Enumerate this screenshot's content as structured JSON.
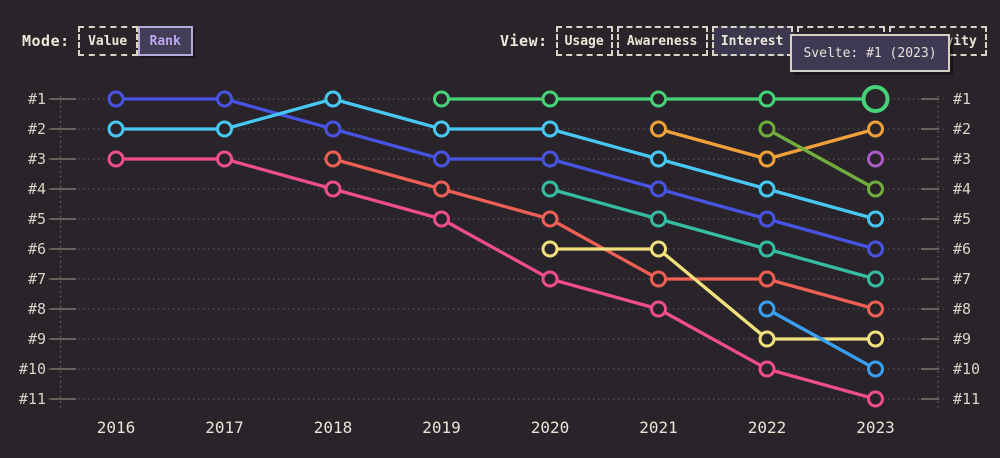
{
  "colors": {
    "background": "#282429",
    "text": "#e9e4d6",
    "grid": "#54505a",
    "tick": "#8a847a",
    "selected_mode_bg": "#433e58",
    "selected_mode_text": "#bda6ef",
    "selected_view_bg": "#3b374d",
    "tooltip_bg": "#3e3a54",
    "tooltip_border": "#d6d1c3"
  },
  "controls": {
    "mode": {
      "label": "Mode:",
      "options": [
        {
          "label": "Value",
          "selected": false
        },
        {
          "label": "Rank",
          "selected": true
        }
      ]
    },
    "view": {
      "label": "View:",
      "options": [
        {
          "label": "Usage",
          "selected": false
        },
        {
          "label": "Awareness",
          "selected": false
        },
        {
          "label": "Interest",
          "selected": true
        },
        {
          "label": "",
          "selected": false,
          "occluded_by_tooltip": true
        },
        {
          "label": "Positivity",
          "selected": false,
          "partially_occluded_by_tooltip": true
        }
      ]
    }
  },
  "tooltip": {
    "text": "Svelte: #1 (2023)"
  },
  "chart_data": {
    "type": "line",
    "subtype": "bump-rank-chart",
    "title": "",
    "x": [
      2016,
      2017,
      2018,
      2019,
      2020,
      2021,
      2022,
      2023
    ],
    "rank_labels": [
      "#1",
      "#2",
      "#3",
      "#4",
      "#5",
      "#6",
      "#7",
      "#8",
      "#9",
      "#10",
      "#11"
    ],
    "ylim": [
      1,
      11
    ],
    "grid": "dotted-horizontal, rank axis mirrored left and right",
    "legend": "none (series identified by color; hovered series tooltip = Svelte)",
    "series": [
      {
        "name": "blue",
        "color": "#4853e3",
        "ranks": [
          1,
          1,
          2,
          3,
          3,
          4,
          5,
          6
        ]
      },
      {
        "name": "cyan",
        "color": "#47c8f2",
        "ranks": [
          2,
          2,
          1,
          2,
          2,
          3,
          4,
          5
        ]
      },
      {
        "name": "pink",
        "color": "#ef4e88",
        "ranks": [
          3,
          3,
          4,
          5,
          7,
          8,
          10,
          11
        ]
      },
      {
        "name": "salmon",
        "color": "#ee5f55",
        "ranks": [
          null,
          null,
          3,
          4,
          5,
          7,
          7,
          8
        ]
      },
      {
        "name": "teal",
        "color": "#36bda1",
        "ranks": [
          null,
          null,
          null,
          null,
          4,
          5,
          6,
          7
        ]
      },
      {
        "name": "yellow",
        "color": "#f1e17e",
        "ranks": [
          null,
          null,
          null,
          null,
          6,
          6,
          9,
          9
        ]
      },
      {
        "name": "orange",
        "color": "#efa03a",
        "ranks": [
          null,
          null,
          null,
          null,
          null,
          2,
          3,
          2
        ]
      },
      {
        "name": "apple-green",
        "color": "#70ad3d",
        "ranks": [
          null,
          null,
          null,
          null,
          null,
          null,
          2,
          4
        ]
      },
      {
        "name": "sky-blue",
        "color": "#3a9ff0",
        "ranks": [
          null,
          null,
          null,
          null,
          null,
          null,
          8,
          10
        ]
      },
      {
        "name": "purple",
        "color": "#ab5bc5",
        "ranks": [
          null,
          null,
          null,
          null,
          null,
          null,
          null,
          3
        ]
      },
      {
        "name": "Svelte",
        "color": "#46d278",
        "ranks": [
          null,
          null,
          null,
          1,
          1,
          1,
          1,
          1
        ],
        "highlight_last": true,
        "highlight_tooltip": "Svelte: #1 (2023)"
      }
    ]
  }
}
